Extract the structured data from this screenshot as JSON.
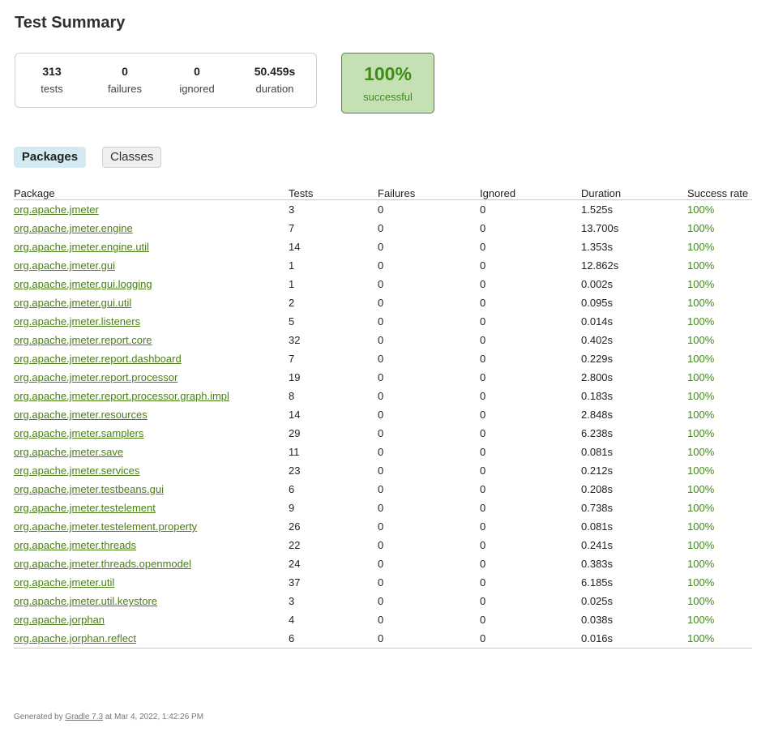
{
  "title": "Test Summary",
  "summary": {
    "tests": {
      "value": "313",
      "label": "tests"
    },
    "failures": {
      "value": "0",
      "label": "failures"
    },
    "ignored": {
      "value": "0",
      "label": "ignored"
    },
    "duration": {
      "value": "50.459s",
      "label": "duration"
    }
  },
  "success": {
    "percent": "100%",
    "label": "successful"
  },
  "tabs": {
    "packages": "Packages",
    "classes": "Classes"
  },
  "table": {
    "headers": [
      "Package",
      "Tests",
      "Failures",
      "Ignored",
      "Duration",
      "Success rate"
    ],
    "rows": [
      [
        "org.apache.jmeter",
        "3",
        "0",
        "0",
        "1.525s",
        "100%"
      ],
      [
        "org.apache.jmeter.engine",
        "7",
        "0",
        "0",
        "13.700s",
        "100%"
      ],
      [
        "org.apache.jmeter.engine.util",
        "14",
        "0",
        "0",
        "1.353s",
        "100%"
      ],
      [
        "org.apache.jmeter.gui",
        "1",
        "0",
        "0",
        "12.862s",
        "100%"
      ],
      [
        "org.apache.jmeter.gui.logging",
        "1",
        "0",
        "0",
        "0.002s",
        "100%"
      ],
      [
        "org.apache.jmeter.gui.util",
        "2",
        "0",
        "0",
        "0.095s",
        "100%"
      ],
      [
        "org.apache.jmeter.listeners",
        "5",
        "0",
        "0",
        "0.014s",
        "100%"
      ],
      [
        "org.apache.jmeter.report.core",
        "32",
        "0",
        "0",
        "0.402s",
        "100%"
      ],
      [
        "org.apache.jmeter.report.dashboard",
        "7",
        "0",
        "0",
        "0.229s",
        "100%"
      ],
      [
        "org.apache.jmeter.report.processor",
        "19",
        "0",
        "0",
        "2.800s",
        "100%"
      ],
      [
        "org.apache.jmeter.report.processor.graph.impl",
        "8",
        "0",
        "0",
        "0.183s",
        "100%"
      ],
      [
        "org.apache.jmeter.resources",
        "14",
        "0",
        "0",
        "2.848s",
        "100%"
      ],
      [
        "org.apache.jmeter.samplers",
        "29",
        "0",
        "0",
        "6.238s",
        "100%"
      ],
      [
        "org.apache.jmeter.save",
        "11",
        "0",
        "0",
        "0.081s",
        "100%"
      ],
      [
        "org.apache.jmeter.services",
        "23",
        "0",
        "0",
        "0.212s",
        "100%"
      ],
      [
        "org.apache.jmeter.testbeans.gui",
        "6",
        "0",
        "0",
        "0.208s",
        "100%"
      ],
      [
        "org.apache.jmeter.testelement",
        "9",
        "0",
        "0",
        "0.738s",
        "100%"
      ],
      [
        "org.apache.jmeter.testelement.property",
        "26",
        "0",
        "0",
        "0.081s",
        "100%"
      ],
      [
        "org.apache.jmeter.threads",
        "22",
        "0",
        "0",
        "0.241s",
        "100%"
      ],
      [
        "org.apache.jmeter.threads.openmodel",
        "24",
        "0",
        "0",
        "0.383s",
        "100%"
      ],
      [
        "org.apache.jmeter.util",
        "37",
        "0",
        "0",
        "6.185s",
        "100%"
      ],
      [
        "org.apache.jmeter.util.keystore",
        "3",
        "0",
        "0",
        "0.025s",
        "100%"
      ],
      [
        "org.apache.jorphan",
        "4",
        "0",
        "0",
        "0.038s",
        "100%"
      ],
      [
        "org.apache.jorphan.reflect",
        "6",
        "0",
        "0",
        "0.016s",
        "100%"
      ]
    ]
  },
  "footer": {
    "prefix": "Generated by ",
    "link": "Gradle 7.3",
    "suffix": " at Mar 4, 2022, 1:42:26 PM"
  },
  "colors": {
    "success_text": "#3f8c14",
    "success_bg": "#c5e1b4",
    "link": "#4a7f16",
    "tab_active_bg": "#d4eaf3"
  }
}
